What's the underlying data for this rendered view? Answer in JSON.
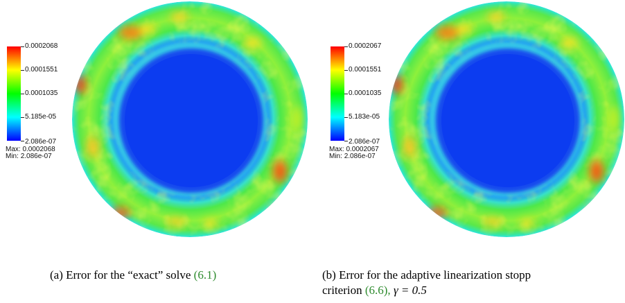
{
  "panels": [
    {
      "id": "a",
      "colorbar": {
        "ticks": [
          "0.0002068",
          "0.0001551",
          "0.0001035",
          "5.185e-05",
          "2.086e-07"
        ],
        "max_label": "Max:",
        "max_value": "0.0002068",
        "min_label": "Min:",
        "min_value": "2.086e-07"
      },
      "caption": {
        "tag": "(a)",
        "text": "Error for the “exact” solve",
        "ref_open": "(",
        "ref": "6.1",
        "ref_close": ")"
      }
    },
    {
      "id": "b",
      "colorbar": {
        "ticks": [
          "0.0002067",
          "0.0001551",
          "0.0001035",
          "5.183e-05",
          "2.086e-07"
        ],
        "max_label": "Max:",
        "max_value": "0.0002067",
        "min_label": "Min:",
        "min_value": "2.086e-07"
      },
      "caption": {
        "tag": "(b)",
        "line1": "Error for the adaptive linearization stopp",
        "line2_pre": "criterion",
        "ref_open": "(",
        "ref": "6.6",
        "ref_close": "),",
        "gamma": "γ = 0.5"
      }
    }
  ],
  "colors": {
    "max": "#ff0000",
    "high": "#ffff00",
    "mid": "#00ff00",
    "low": "#00ffff",
    "min": "#0000ff",
    "ring": "#44e84a",
    "core": "#1048f0",
    "link": "#2e8b2e"
  }
}
